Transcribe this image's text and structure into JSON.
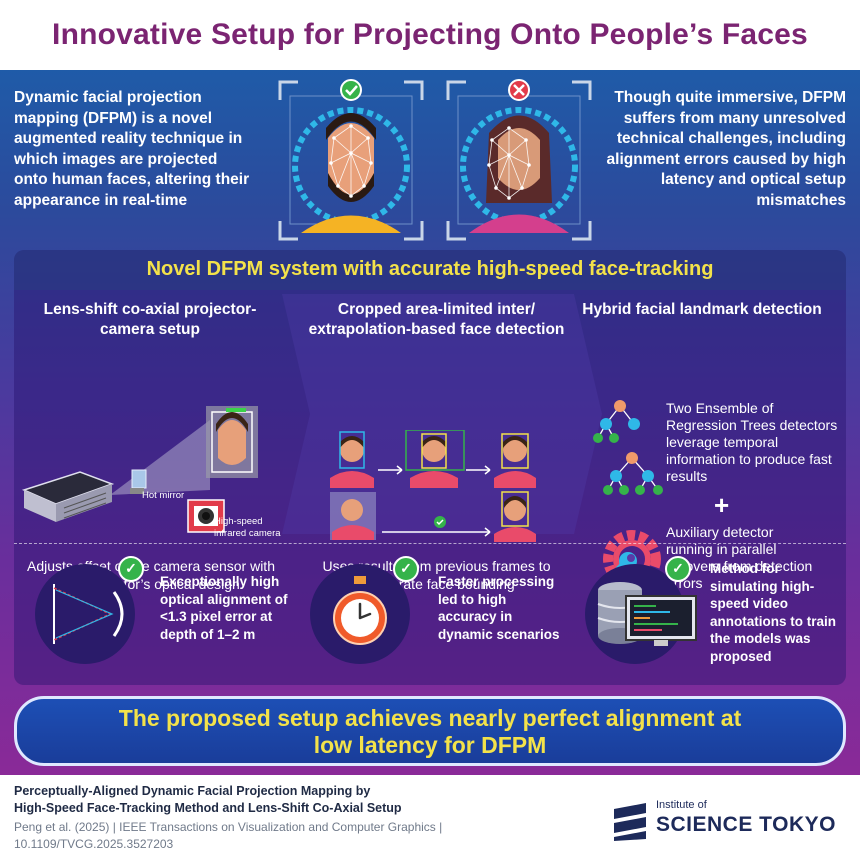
{
  "title": "Innovative Setup for Projecting Onto People’s Faces",
  "intro": {
    "left": "Dynamic facial projection mapping (DFPM) is a novel augmented reality technique in which images are projected onto human faces, altering their appearance in real-time",
    "right": "Though quite immersive, DFPM suffers from many unresolved technical challenges, including alignment errors caused by high latency and optical setup mismatches"
  },
  "section": {
    "title": "Novel DFPM system with accurate high-speed face-tracking",
    "col1": {
      "heading": "Lens-shift co-axial projector-camera setup",
      "label_mirror": "Hot mirror",
      "label_camera": "High-speed infrared camera",
      "desc": "Adjusts offset of the camera sensor with the projector’s optical design"
    },
    "col2": {
      "heading": "Cropped area-limited inter/ extrapolation-based face detection",
      "desc": "Uses results from previous frames to accelerate face bounding"
    },
    "col3": {
      "heading": "Hybrid facial landmark detection",
      "text1": "Two Ensemble of Regression Trees detectors leverage temporal information to produce fast results",
      "plus": "+",
      "text2": "Auxiliary detector running in parallel recovers from detection errors"
    }
  },
  "achievements": [
    {
      "text": "Exceptionally high optical alignment of <1.3 pixel error at depth of 1–2 m"
    },
    {
      "text": "Faster processing led to high accuracy in dynamic scenarios"
    },
    {
      "text": "Method for simulating high-speed video annotations to train the models was proposed"
    }
  ],
  "conclusion": {
    "line1": "The proposed setup achieves nearly perfect alignment at",
    "line2": "low latency for DFPM"
  },
  "footer": {
    "paper_title_1": "Perceptually-Aligned Dynamic Facial Projection Mapping by",
    "paper_title_2": "High-Speed Face-Tracking Method and Lens-Shift Co-Axial Setup",
    "citation_1": "Peng et al. (2025) | IEEE Transactions on Visualization and Computer Graphics |",
    "citation_2": "10.1109/TVCG.2025.3527203",
    "logo_sub": "Institute of",
    "logo_main": "SCIENCE TOKYO"
  },
  "colors": {
    "title": "#7b2472",
    "highlight": "#f3e24a",
    "check": "#35b34a",
    "error": "#e23b4a"
  },
  "icons": [
    "check-icon",
    "error-x-icon",
    "projector-icon",
    "hot-mirror-icon",
    "infrared-camera-icon",
    "face-avatar-icon",
    "regression-tree-icon",
    "gear-wrench-icon",
    "optics-diagram-icon",
    "stopwatch-icon",
    "database-monitor-icon",
    "science-tokyo-logo"
  ]
}
